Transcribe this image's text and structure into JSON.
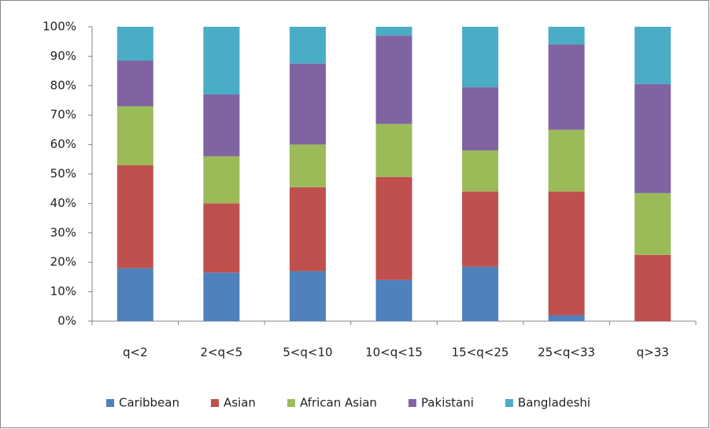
{
  "chart_data": {
    "type": "stacked_bar",
    "categories": [
      "q<2",
      "2<q<5",
      "5<q<10",
      "10<q<15",
      "15<q<25",
      "25<q<33",
      "q>33"
    ],
    "series": [
      {
        "name": "Caribbean",
        "color": "#4f81bd",
        "values": [
          18,
          16.5,
          17,
          14,
          18.5,
          2,
          0
        ]
      },
      {
        "name": "Asian",
        "color": "#c0504d",
        "values": [
          35,
          23.5,
          28.5,
          35,
          25.5,
          42,
          22.5
        ]
      },
      {
        "name": "African Asian",
        "color": "#9bbb59",
        "values": [
          20,
          16,
          14.5,
          18,
          14,
          21,
          21
        ]
      },
      {
        "name": "Pakistani",
        "color": "#8064a2",
        "values": [
          15.5,
          21,
          27.5,
          30,
          21.5,
          29,
          37
        ]
      },
      {
        "name": "Bangladeshi",
        "color": "#4bacc6",
        "values": [
          11.5,
          23,
          12.5,
          3,
          20.5,
          6,
          19.5
        ]
      }
    ],
    "ylim": [
      0,
      100
    ],
    "yticks": [
      {
        "value": 0,
        "label": "0%"
      },
      {
        "value": 10,
        "label": "10%"
      },
      {
        "value": 20,
        "label": "20%"
      },
      {
        "value": 30,
        "label": "30%"
      },
      {
        "value": 40,
        "label": "40%"
      },
      {
        "value": 50,
        "label": "50%"
      },
      {
        "value": 60,
        "label": "60%"
      },
      {
        "value": 70,
        "label": "70%"
      },
      {
        "value": 80,
        "label": "80%"
      },
      {
        "value": 90,
        "label": "90%"
      },
      {
        "value": 100,
        "label": "100%"
      }
    ],
    "legend": "bottom"
  }
}
